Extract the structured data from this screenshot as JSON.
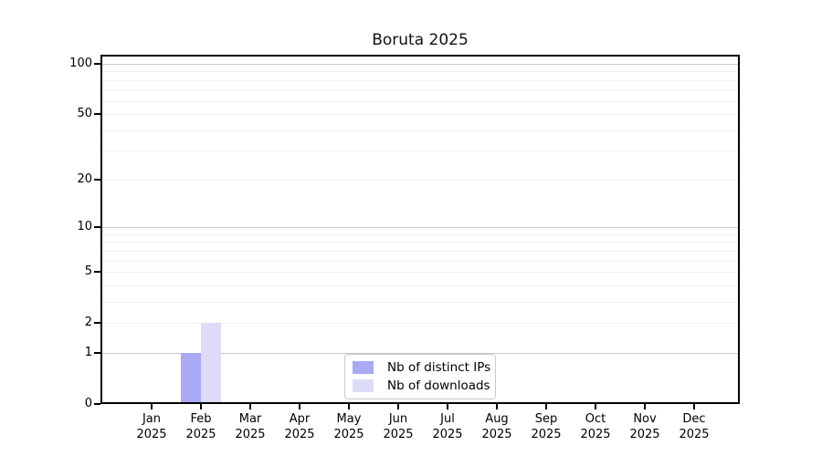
{
  "chart_data": {
    "type": "bar",
    "title": "Boruta 2025",
    "categories": [
      "Jan 2025",
      "Feb 2025",
      "Mar 2025",
      "Apr 2025",
      "May 2025",
      "Jun 2025",
      "Jul 2025",
      "Aug 2025",
      "Sep 2025",
      "Oct 2025",
      "Nov 2025",
      "Dec 2025"
    ],
    "series": [
      {
        "name": "Nb of distinct IPs",
        "color": "#a9a9f4",
        "values": [
          0,
          1,
          0,
          0,
          0,
          0,
          0,
          0,
          0,
          0,
          0,
          0
        ]
      },
      {
        "name": "Nb of downloads",
        "color": "#dcdcf9",
        "values": [
          0,
          2,
          0,
          0,
          0,
          0,
          0,
          0,
          0,
          0,
          0,
          0
        ]
      }
    ],
    "xlabel": "",
    "ylabel": "",
    "y_scale": "log1p",
    "ylim": [
      0,
      113
    ],
    "y_ticks": [
      0,
      1,
      2,
      5,
      10,
      20,
      50,
      100
    ],
    "y_major_gridlines": [
      1,
      10,
      100
    ],
    "y_minor_gridlines": [
      2,
      3,
      4,
      5,
      6,
      7,
      8,
      9,
      20,
      30,
      40,
      50,
      60,
      70,
      80,
      90
    ],
    "grid": true,
    "legend_position": "lower center"
  },
  "colors": {
    "background": "#ffffff",
    "spine": "#000000",
    "major_grid": "#c9c9c9",
    "minor_grid": "#f0f0f0",
    "text": "#111111",
    "legend_border": "#c9c9c9"
  }
}
